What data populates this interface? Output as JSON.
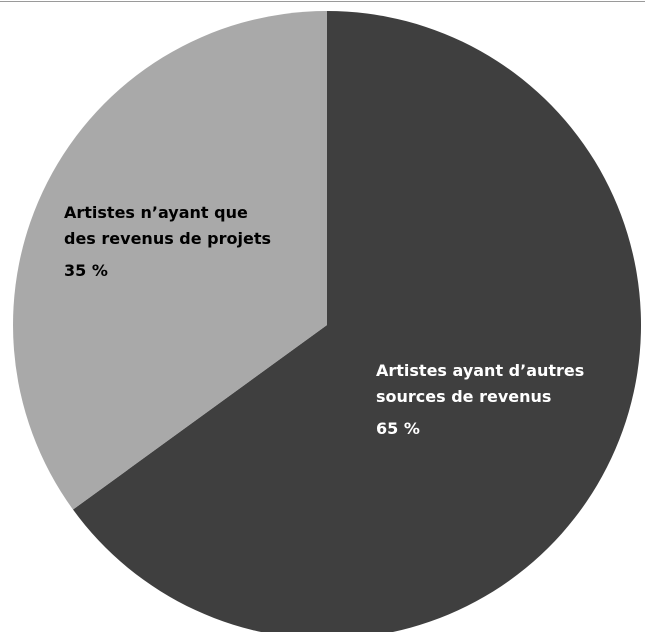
{
  "chart_data": {
    "type": "pie",
    "title": "",
    "categories": [
      "Artistes n’ayant que des revenus de projets",
      "Artistes ayant d’autres sources de revenus"
    ],
    "values": [
      35,
      65
    ],
    "slices": [
      {
        "label_lines": [
          "Artistes n’ayant que",
          "des revenus de projets"
        ],
        "value": 35,
        "value_label": "35 %",
        "color": "#a9a9a9",
        "text_color": "#000000"
      },
      {
        "label_lines": [
          "Artistes ayant d’autres",
          "sources de revenus"
        ],
        "value": 65,
        "value_label": "65 %",
        "color": "#3f3f3f",
        "text_color": "#ffffff"
      }
    ],
    "start": "12 o'clock",
    "direction": "clockwise",
    "legend": "none"
  },
  "colors": {
    "background": "#ffffff",
    "top_rule": "#9a9a9a"
  }
}
